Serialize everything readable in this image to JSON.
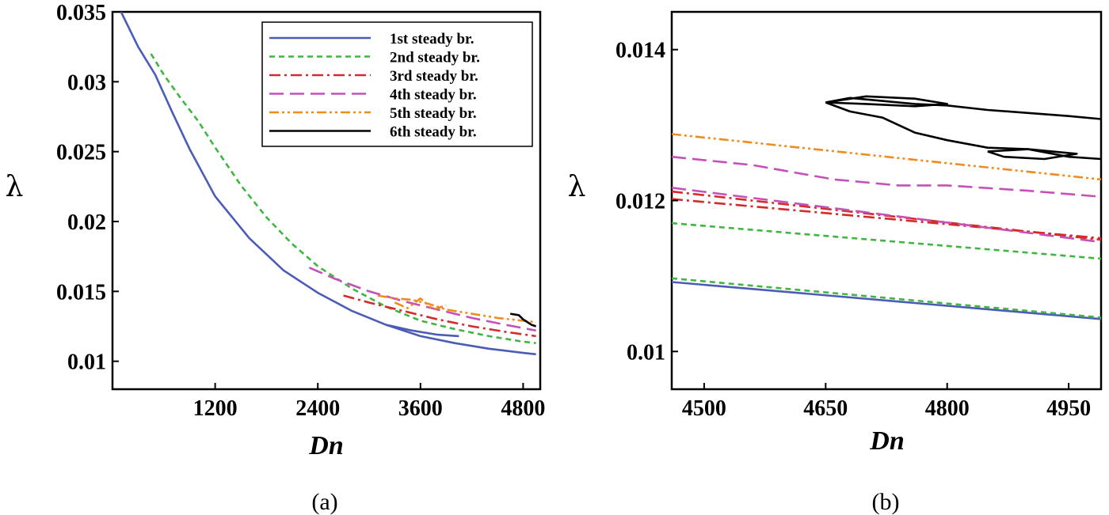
{
  "styles": {
    "1st steady br.": {
      "color": "#4b5cb8",
      "dash": ""
    },
    "2nd steady br.": {
      "color": "#3fb63f",
      "dash": "7,5"
    },
    "3rd steady br.": {
      "color": "#d42a2a",
      "dash": "14,5,3,5"
    },
    "4th steady br.": {
      "color": "#c450b8",
      "dash": "18,8"
    },
    "5th steady br.": {
      "color": "#f08c1e",
      "dash": "12,4,3,4,3,4"
    },
    "6th steady br.": {
      "color": "#000000",
      "dash": ""
    }
  },
  "chart_data": [
    {
      "type": "line",
      "panel_label": "(a)",
      "xlabel": "Dn",
      "ylabel": "λ",
      "xlim": [
        0,
        5000
      ],
      "ylim": [
        0.008,
        0.035
      ],
      "xticks": [
        1200,
        2400,
        3600,
        4800
      ],
      "xtick_labels": [
        "1200",
        "2400",
        "3600",
        "4800"
      ],
      "yticks": [
        0.01,
        0.015,
        0.02,
        0.025,
        0.03,
        0.035
      ],
      "ytick_labels": [
        "0.01",
        "0.015",
        "0.02",
        "0.025",
        "0.03",
        "0.035"
      ],
      "legend": "top-right",
      "grid": false,
      "series": [
        {
          "name": "1st steady br.",
          "x": [
            100,
            300,
            500,
            700,
            900,
            1200,
            1600,
            2000,
            2400,
            2800,
            3200,
            3600,
            4000,
            4400,
            4800,
            4950
          ],
          "y": [
            0.035,
            0.0325,
            0.0305,
            0.0278,
            0.0252,
            0.0218,
            0.0188,
            0.0165,
            0.0149,
            0.0136,
            0.0126,
            0.0118,
            0.0113,
            0.0109,
            0.0106,
            0.0105
          ]
        },
        {
          "name": "1st steady br.",
          "x": [
            3200,
            3500,
            3800,
            4050
          ],
          "y": [
            0.0126,
            0.0122,
            0.0119,
            0.0118
          ]
        },
        {
          "name": "2nd steady br.",
          "x": [
            450,
            600,
            800,
            1000,
            1200,
            1500,
            1800,
            2100,
            2400,
            2800,
            3200,
            3600,
            4000,
            4400,
            4800,
            4950
          ],
          "y": [
            0.032,
            0.0305,
            0.0288,
            0.0272,
            0.0253,
            0.0226,
            0.0203,
            0.0184,
            0.0168,
            0.0152,
            0.0139,
            0.0129,
            0.0123,
            0.0118,
            0.0114,
            0.0113
          ]
        },
        {
          "name": "3rd steady br.",
          "x": [
            2700,
            3000,
            3400,
            3800,
            4200,
            4600,
            4950
          ],
          "y": [
            0.0147,
            0.0142,
            0.0136,
            0.013,
            0.0125,
            0.0121,
            0.0118
          ]
        },
        {
          "name": "4th steady br.",
          "x": [
            2300,
            2600,
            3000,
            3400,
            3800,
            4200,
            4600,
            4950
          ],
          "y": [
            0.0167,
            0.0159,
            0.015,
            0.0143,
            0.0137,
            0.0131,
            0.0126,
            0.0122
          ]
        },
        {
          "name": "5th steady br.",
          "x": [
            3100,
            3300,
            3500,
            3700,
            3900,
            4200,
            4500,
            4800,
            4950
          ],
          "y": [
            0.0147,
            0.0145,
            0.0144,
            0.0141,
            0.0137,
            0.0134,
            0.0131,
            0.0129,
            0.0128
          ]
        },
        {
          "name": "5th steady br.",
          "x": [
            3300,
            3450,
            3600,
            3750,
            3900
          ],
          "y": [
            0.0142,
            0.0138,
            0.0145,
            0.0137,
            0.014
          ]
        },
        {
          "name": "6th steady br.",
          "x": [
            4650,
            4750,
            4800,
            4850,
            4900,
            4950
          ],
          "y": [
            0.0134,
            0.0133,
            0.013,
            0.0128,
            0.0126,
            0.0125
          ]
        }
      ]
    },
    {
      "type": "line",
      "panel_label": "(b)",
      "xlabel": "Dn",
      "ylabel": "λ",
      "xlim": [
        4460,
        4990
      ],
      "ylim": [
        0.0095,
        0.0145
      ],
      "xticks": [
        4500,
        4650,
        4800,
        4950
      ],
      "xtick_labels": [
        "4500",
        "4650",
        "4800",
        "4950"
      ],
      "yticks": [
        0.01,
        0.012,
        0.014
      ],
      "ytick_labels": [
        "0.01",
        "0.012",
        "0.014"
      ],
      "grid": false,
      "series": [
        {
          "name": "1st steady br.",
          "x": [
            4460,
            4990
          ],
          "y": [
            0.01092,
            0.01043
          ]
        },
        {
          "name": "2nd steady br.",
          "x": [
            4460,
            4990
          ],
          "y": [
            0.01097,
            0.01045
          ]
        },
        {
          "name": "2nd steady br.",
          "x": [
            4460,
            4990
          ],
          "y": [
            0.0117,
            0.01123
          ]
        },
        {
          "name": "3rd steady br.",
          "x": [
            4460,
            4990
          ],
          "y": [
            0.01202,
            0.0115
          ]
        },
        {
          "name": "3rd steady br.",
          "x": [
            4460,
            4990
          ],
          "y": [
            0.01212,
            0.01148
          ]
        },
        {
          "name": "4th steady br.",
          "x": [
            4460,
            4990
          ],
          "y": [
            0.01217,
            0.01145
          ]
        },
        {
          "name": "4th steady br.",
          "x": [
            4460,
            4560,
            4660,
            4740,
            4800,
            4900,
            4990
          ],
          "y": [
            0.01258,
            0.01247,
            0.01228,
            0.0122,
            0.0122,
            0.01213,
            0.01205
          ]
        },
        {
          "name": "5th steady br.",
          "x": [
            4460,
            4990
          ],
          "y": [
            0.01288,
            0.01228
          ]
        },
        {
          "name": "6th steady br.",
          "x": [
            4650,
            4680,
            4720,
            4760,
            4800,
            4850,
            4900,
            4950,
            4990
          ],
          "y": [
            0.0133,
            0.01318,
            0.0131,
            0.0129,
            0.0128,
            0.0127,
            0.01268,
            0.01258,
            0.01255
          ]
        },
        {
          "name": "6th steady br.",
          "x": [
            4650,
            4680,
            4720,
            4760,
            4800,
            4850,
            4900,
            4950,
            4990
          ],
          "y": [
            0.0133,
            0.01336,
            0.01332,
            0.01328,
            0.01326,
            0.0132,
            0.01316,
            0.01312,
            0.01308
          ]
        },
        {
          "name": "6th steady br.",
          "x": [
            4650,
            4700,
            4760,
            4800,
            4760,
            4700,
            4650
          ],
          "y": [
            0.0133,
            0.01338,
            0.01335,
            0.01328,
            0.01325,
            0.01328,
            0.0133
          ]
        },
        {
          "name": "6th steady br.",
          "x": [
            4850,
            4900,
            4960,
            4920,
            4870,
            4850
          ],
          "y": [
            0.01265,
            0.01268,
            0.01262,
            0.01255,
            0.01258,
            0.01265
          ]
        }
      ]
    }
  ]
}
